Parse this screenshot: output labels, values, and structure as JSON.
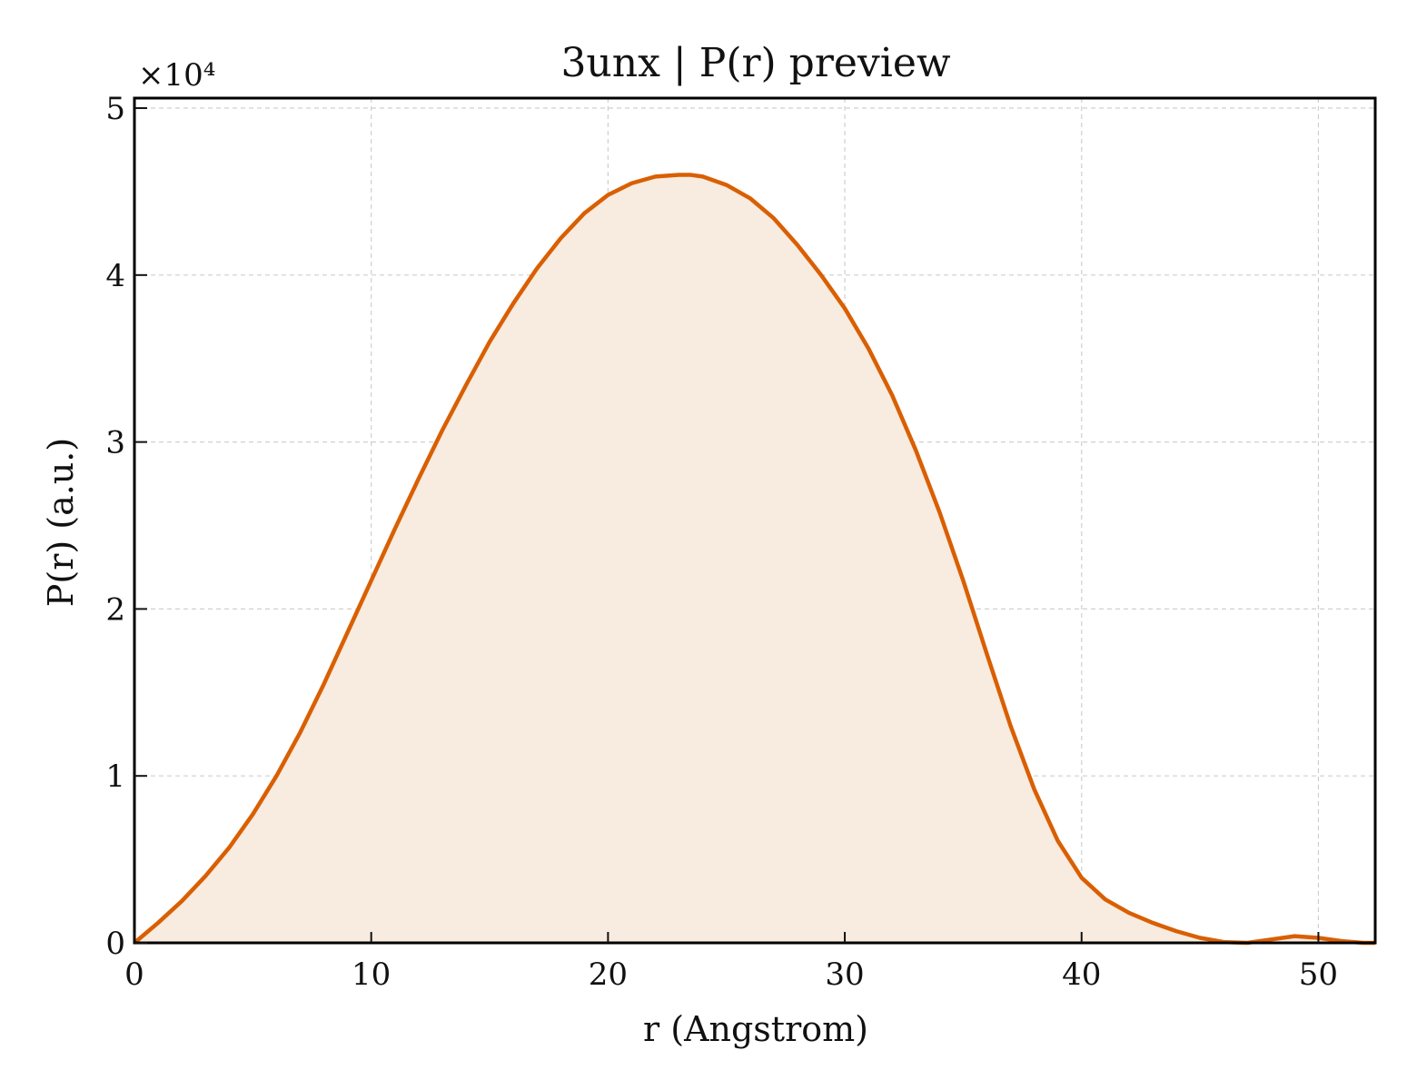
{
  "chart_data": {
    "type": "area",
    "title": "3unx | P(r) preview",
    "xlabel": "r (Angstrom)",
    "ylabel": "P(r) (a.u.)",
    "y_scale_label": "×10⁴",
    "xlim": [
      0,
      52.4
    ],
    "ylim": [
      0,
      50600
    ],
    "xticks": [
      0,
      10,
      20,
      30,
      40,
      50
    ],
    "yticks": [
      0,
      10000,
      20000,
      30000,
      40000,
      50000
    ],
    "ytick_labels": [
      "0",
      "1",
      "2",
      "3",
      "4",
      "5"
    ],
    "grid": true,
    "colors": {
      "line": "#d95f02",
      "fill": "#f8ebe0"
    },
    "series": [
      {
        "x": [
          0,
          1,
          2,
          3,
          4,
          5,
          6,
          7,
          8,
          9,
          10,
          11,
          12,
          13,
          14,
          15,
          16,
          17,
          18,
          19,
          20,
          21,
          22,
          23,
          23.5,
          24,
          25,
          26,
          27,
          28,
          29,
          30,
          31,
          32,
          33,
          34,
          35,
          36,
          37,
          38,
          39,
          40,
          41,
          42,
          43,
          44,
          45,
          46,
          47,
          48,
          49,
          50,
          51,
          51.9,
          52.4
        ],
        "y": [
          0,
          1200,
          2500,
          4000,
          5700,
          7700,
          10000,
          12600,
          15500,
          18600,
          21700,
          24800,
          27800,
          30700,
          33400,
          36000,
          38300,
          40400,
          42200,
          43700,
          44800,
          45500,
          45900,
          46000,
          46000,
          45900,
          45400,
          44600,
          43400,
          41800,
          40000,
          38000,
          35600,
          32800,
          29500,
          25800,
          21700,
          17300,
          13000,
          9200,
          6100,
          3900,
          2600,
          1800,
          1200,
          700,
          300,
          50,
          0,
          200,
          400,
          300,
          100,
          0,
          0
        ]
      }
    ]
  }
}
